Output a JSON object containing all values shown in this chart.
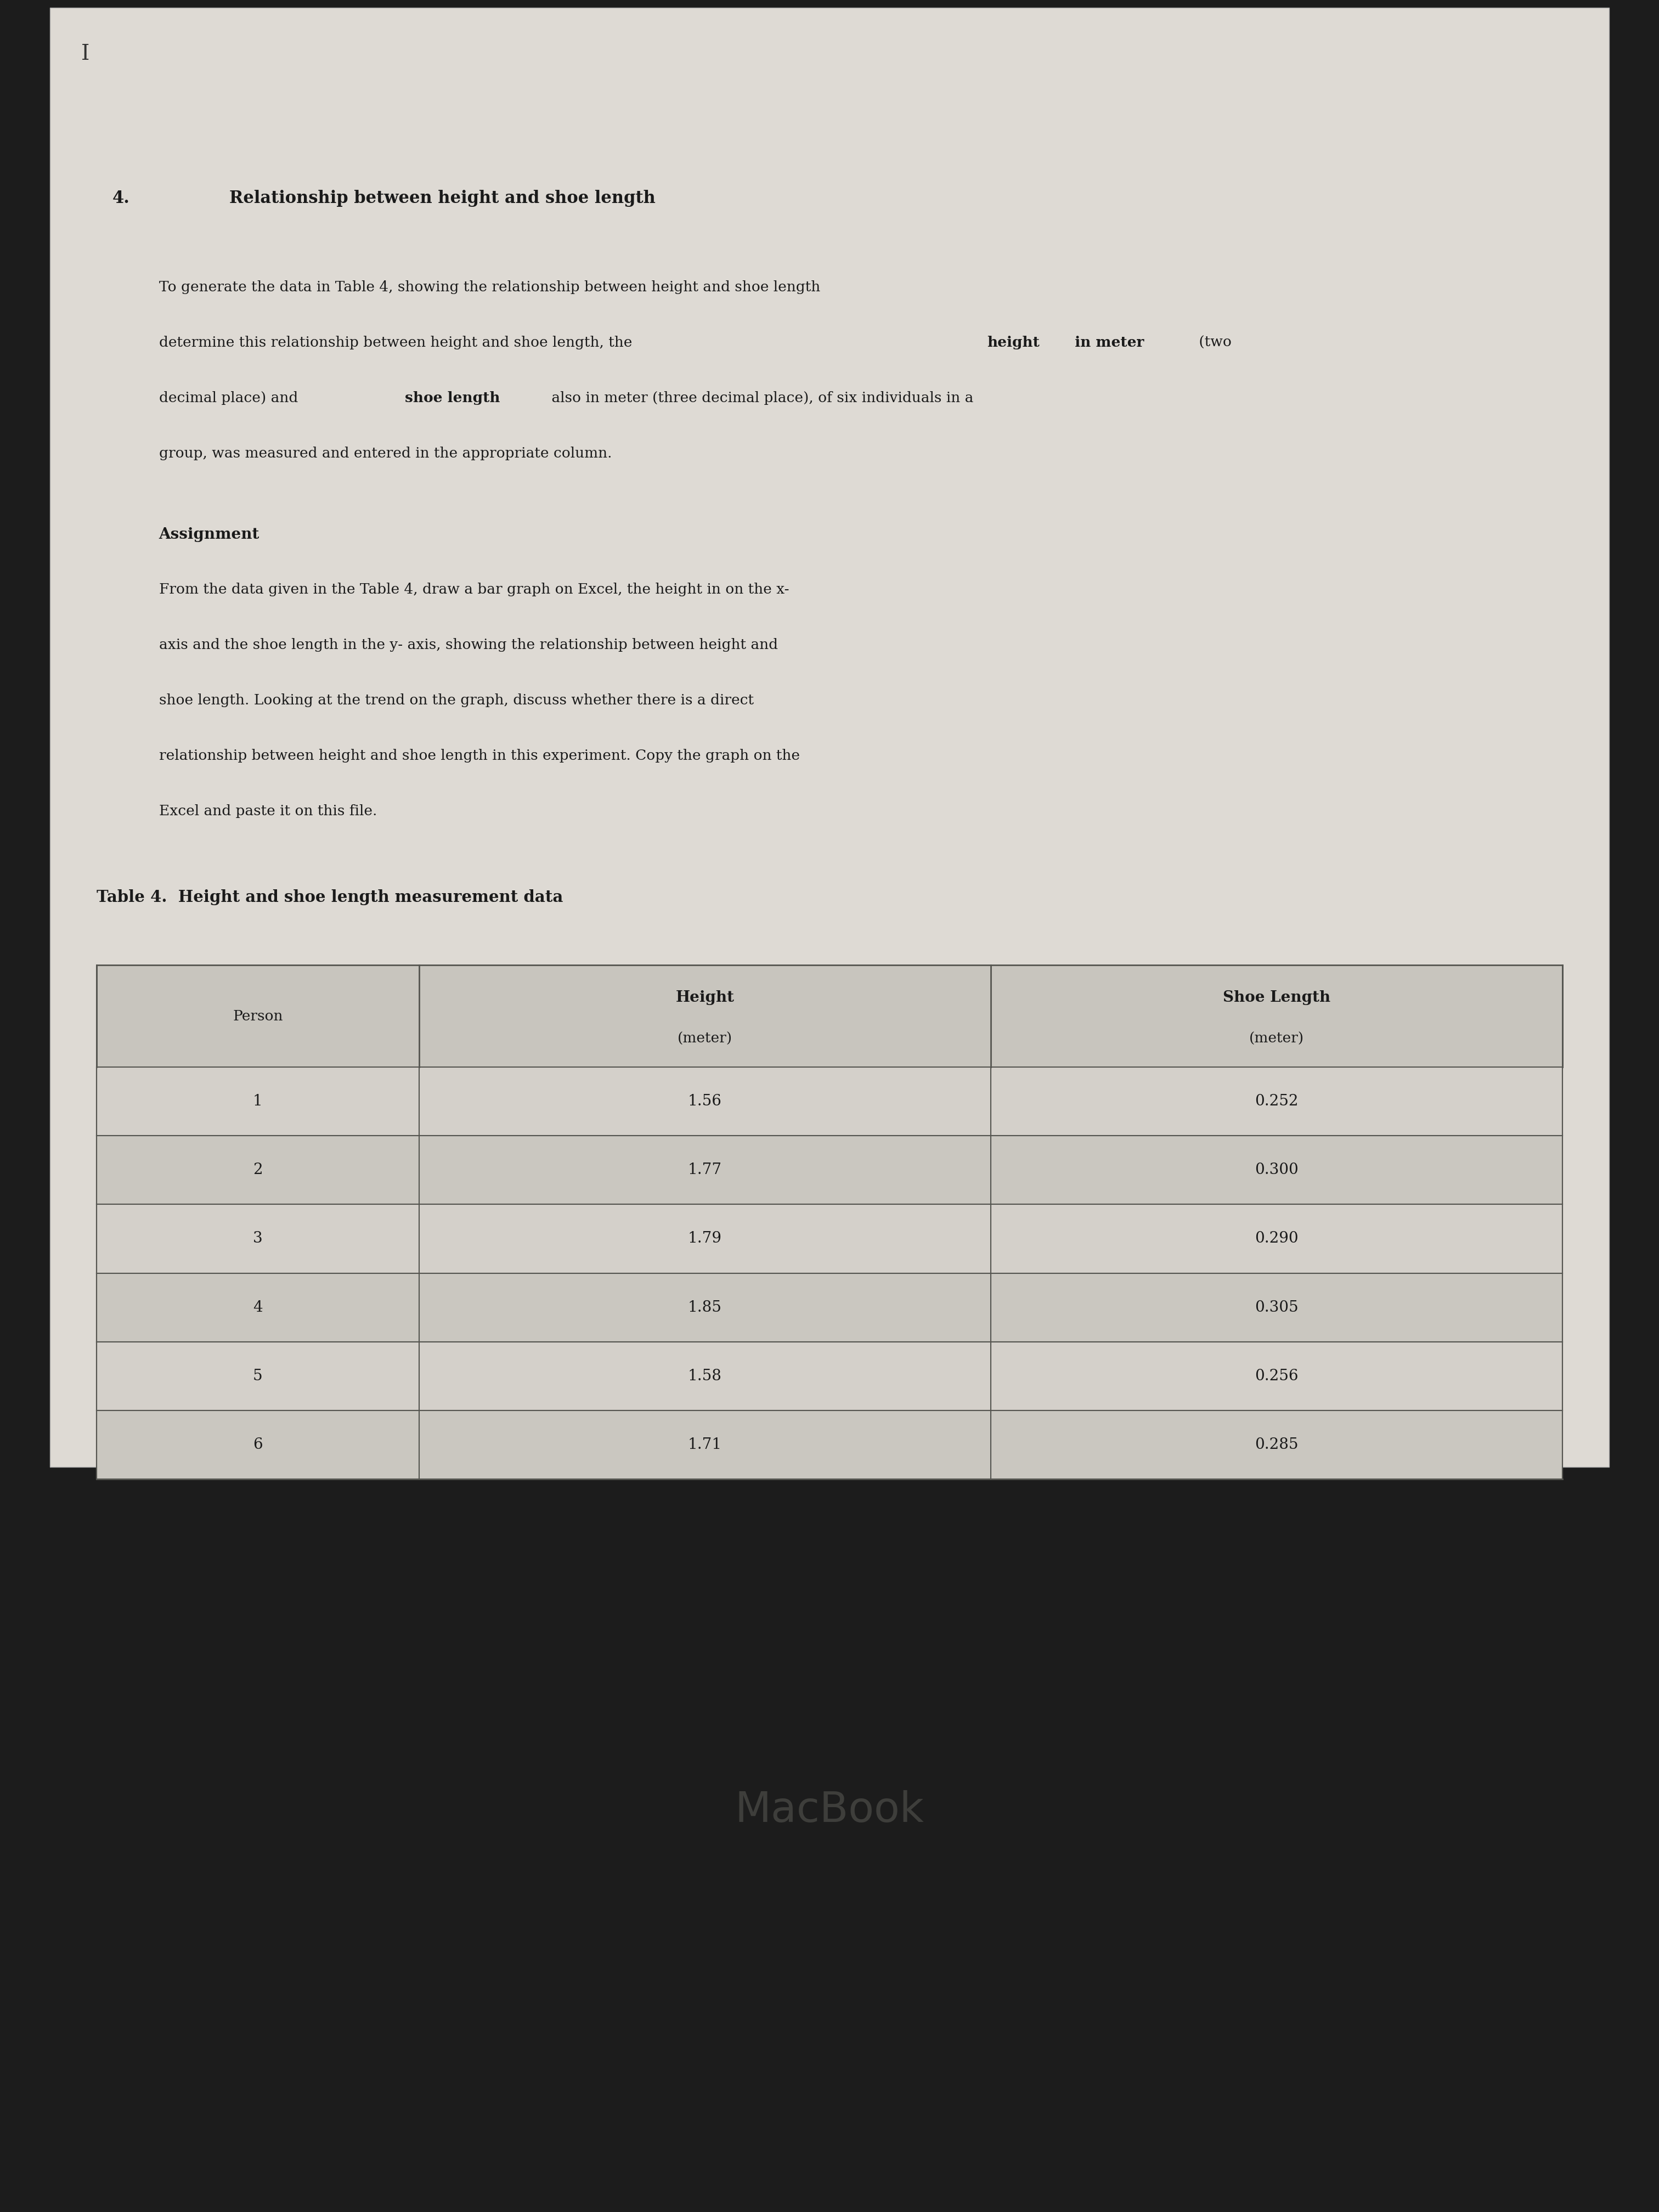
{
  "section_number": "4.",
  "section_title": "Relationship between height and shoe length",
  "para1_line1": "To generate the data in Table 4, showing the relationship between height and shoe length",
  "para1_line2": "determine this relationship between height and shoe length, the ",
  "para1_bold1": "height",
  "para1_mid": "  in meter",
  "para1_bold2": " (two",
  "para1_line3": "decimal place) and ",
  "para1_bold3": "shoe length",
  "para1_line4": " also in meter (three decimal place), of six individuals in a",
  "para1_line5": "group, was measured and entered in the appropriate column.",
  "assignment_title": "Assignment",
  "assignment_text_lines": [
    "From the data given in the Table 4, draw a bar graph on Excel, the height in on the x-",
    "axis and the shoe length in the y- axis, showing the relationship between height and",
    "shoe length. Looking at the trend on the graph, discuss whether there is a direct",
    "relationship between height and shoe length in this experiment. Copy the graph on the",
    "Excel and paste it on this file."
  ],
  "table_title": "Table 4.  Height and shoe length measurement data",
  "col_headers_line1": [
    "",
    "Height",
    "Shoe Length"
  ],
  "col_headers_line2": [
    "Person",
    "(meter)",
    "(meter)"
  ],
  "table_data": [
    [
      "1",
      "1.56",
      "0.252"
    ],
    [
      "2",
      "1.77",
      "0.300"
    ],
    [
      "3",
      "1.79",
      "0.290"
    ],
    [
      "4",
      "1.85",
      "0.305"
    ],
    [
      "5",
      "1.58",
      "0.256"
    ],
    [
      "6",
      "1.71",
      "0.285"
    ]
  ],
  "watermark_text": "MacBook",
  "page_bg": "#dedad4",
  "screen_bg": "#c8c5be",
  "table_header_bg": "#c8c5be",
  "table_row_bg1": "#d4d0ca",
  "table_row_bg2": "#cac7c0",
  "text_color": "#1a1a1a",
  "border_color": "#555550",
  "laptop_dark": "#1c1c1c",
  "laptop_mid": "#2a2a2a",
  "screen_frame": "#888880"
}
